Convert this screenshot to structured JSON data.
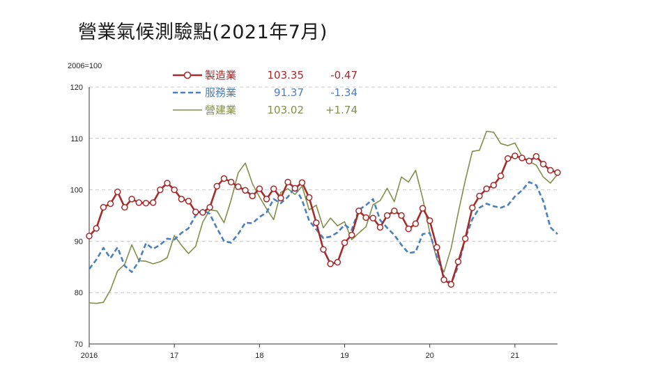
{
  "page": {
    "title": "營業氣候測驗點(2021年7月)"
  },
  "chart_data": {
    "type": "line",
    "title": "營業氣候測驗點(2021年7月)",
    "unit_label": "2006=100",
    "ylim": [
      70,
      120
    ],
    "yticks": [
      70,
      80,
      90,
      100,
      110,
      120
    ],
    "grid": true,
    "legend_placement": "top-left",
    "x_start": "2016-01",
    "x_end": "2021-07",
    "x_tick_labels": [
      {
        "label": "2016",
        "month": "2016-01"
      },
      {
        "label": "17",
        "month": "2017-01"
      },
      {
        "label": "18",
        "month": "2018-01"
      },
      {
        "label": "19",
        "month": "2019-01"
      },
      {
        "label": "20",
        "month": "2020-01"
      },
      {
        "label": "21",
        "month": "2021-01"
      }
    ],
    "series": [
      {
        "name": "製造業",
        "latest": "103.35",
        "change": "-0.47",
        "color": "#a52a2a",
        "style": "solid-marker",
        "values": [
          91.0,
          92.5,
          96.6,
          97.3,
          99.6,
          96.6,
          98.2,
          97.5,
          97.4,
          97.5,
          100.0,
          101.3,
          100.0,
          98.2,
          97.8,
          95.7,
          95.6,
          96.6,
          100.7,
          102.2,
          101.5,
          100.6,
          99.9,
          98.8,
          100.2,
          98.2,
          100.2,
          98.4,
          101.5,
          100.3,
          101.4,
          98.5,
          93.6,
          88.4,
          85.6,
          85.9,
          89.7,
          91.2,
          95.9,
          94.6,
          94.5,
          92.7,
          95.0,
          95.9,
          95.0,
          92.4,
          93.4,
          96.4,
          94.0,
          88.8,
          82.5,
          81.6,
          86.0,
          90.5,
          96.5,
          98.8,
          100.2,
          100.9,
          102.7,
          106.1,
          106.6,
          106.2,
          105.6,
          106.5,
          105.0,
          103.8,
          103.35
        ]
      },
      {
        "name": "服務業",
        "latest": "91.37",
        "change": "-1.34",
        "color": "#4a7fbf",
        "style": "dashed",
        "values": [
          84.6,
          86.4,
          88.7,
          86.7,
          88.8,
          85.2,
          84.0,
          86.1,
          89.6,
          88.5,
          89.3,
          90.5,
          90.3,
          91.6,
          92.5,
          95.0,
          96.1,
          95.3,
          92.5,
          90.0,
          89.7,
          91.4,
          93.6,
          93.5,
          94.7,
          95.6,
          98.2,
          97.4,
          98.6,
          100.5,
          98.0,
          94.0,
          92.3,
          90.6,
          90.9,
          91.7,
          93.2,
          92.2,
          96.1,
          97.0,
          98.2,
          94.1,
          92.6,
          91.2,
          89.3,
          87.7,
          87.9,
          91.4,
          91.6,
          87.0,
          83.1,
          81.8,
          85.1,
          90.5,
          94.3,
          96.5,
          97.3,
          96.8,
          96.5,
          97.0,
          98.7,
          99.9,
          101.5,
          100.9,
          97.8,
          92.7,
          91.37
        ]
      },
      {
        "name": "營建業",
        "latest": "103.02",
        "change": "+1.74",
        "color": "#7f8f4a",
        "style": "solid",
        "values": [
          78.0,
          77.9,
          78.1,
          80.5,
          84.2,
          85.5,
          89.3,
          86.2,
          86.1,
          85.6,
          86.0,
          86.8,
          91.1,
          89.2,
          87.6,
          89.0,
          93.7,
          96.1,
          95.9,
          93.6,
          98.0,
          103.3,
          105.2,
          101.2,
          98.6,
          96.3,
          94.2,
          99.5,
          100.2,
          99.1,
          100.7,
          96.1,
          97.0,
          92.6,
          94.5,
          93.0,
          93.8,
          90.3,
          91.6,
          92.8,
          97.1,
          97.9,
          100.3,
          97.7,
          102.5,
          101.5,
          103.8,
          98.4,
          91.7,
          86.5,
          84.0,
          88.6,
          95.5,
          101.8,
          107.5,
          107.7,
          111.4,
          111.2,
          109.0,
          108.6,
          109.1,
          106.5,
          105.5,
          104.8,
          102.5,
          101.3,
          103.02
        ]
      }
    ]
  }
}
